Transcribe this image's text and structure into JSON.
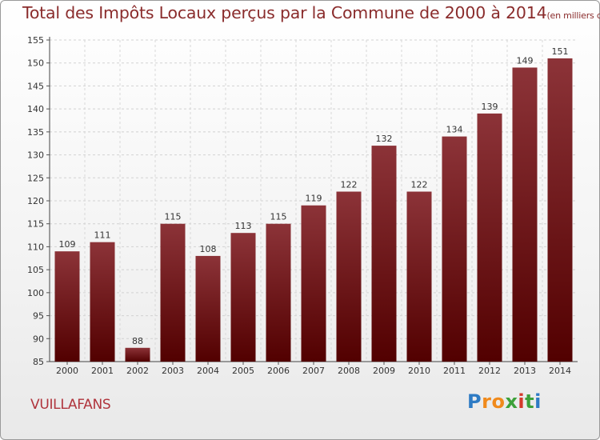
{
  "chart_data": {
    "type": "bar",
    "title": "Total des Impôts Locaux perçus par la Commune de 2000 à 2014",
    "unit_label": "(en milliers d'€)",
    "xlabel": "",
    "ylabel": "",
    "categories": [
      "2000",
      "2001",
      "2002",
      "2003",
      "2004",
      "2005",
      "2006",
      "2007",
      "2008",
      "2009",
      "2010",
      "2011",
      "2012",
      "2013",
      "2014"
    ],
    "values": [
      109,
      111,
      88,
      115,
      108,
      113,
      115,
      119,
      122,
      132,
      122,
      134,
      139,
      149,
      151
    ],
    "ylim": [
      85,
      155
    ],
    "yticks": [
      85,
      90,
      95,
      100,
      105,
      110,
      115,
      120,
      125,
      130,
      135,
      140,
      145,
      150,
      155
    ],
    "grid": true
  },
  "commune_name": "VUILLAFANS",
  "logo": {
    "letters": [
      "P",
      "r",
      "o",
      "x",
      "i",
      "t",
      "i"
    ]
  },
  "colors": {
    "bar_top": "#8c3338",
    "bar_bottom": "#520000",
    "title": "#8a2c2c",
    "commune": "#b0343c",
    "logo_letters": [
      "#2e7bc4",
      "#f08a1c",
      "#f08a1c",
      "#3da13a",
      "#d43a2c",
      "#3da13a",
      "#2e7bc4"
    ]
  }
}
